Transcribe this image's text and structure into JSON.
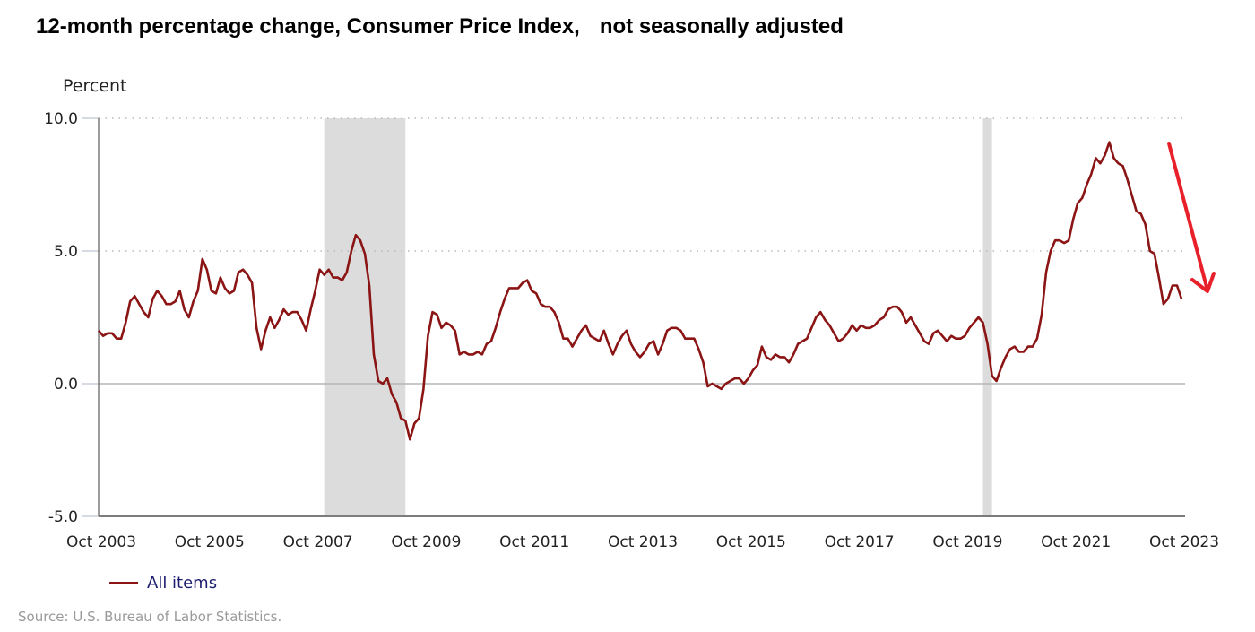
{
  "chart_data": {
    "type": "line",
    "title": "12-month percentage change, Consumer Price Index,",
    "subtitle": "not seasonally adjusted",
    "ylabel": "Percent",
    "xlabel": "",
    "ylim": [
      -5.0,
      10.0
    ],
    "yticks": [
      "10.0",
      "5.0",
      "0.0",
      "-5.0"
    ],
    "ytick_values": [
      10,
      5,
      0,
      -5
    ],
    "xticks": [
      "Oct 2003",
      "Oct 2005",
      "Oct 2007",
      "Oct 2009",
      "Oct 2011",
      "Oct 2013",
      "Oct 2015",
      "Oct 2017",
      "Oct 2019",
      "Oct 2021",
      "Oct 2023"
    ],
    "x_start": "Oct 2003",
    "x_end": "Oct 2023",
    "grid": "horizontal dotted at 5.0 and 10.0; solid zero line",
    "recessions": [
      {
        "start": "Dec 2007",
        "end": "Jun 2009"
      },
      {
        "start": "Feb 2020",
        "end": "Apr 2020"
      }
    ],
    "legend": {
      "position": "bottom-left",
      "entries": [
        {
          "name": "All items",
          "color": "#8b1414"
        }
      ]
    },
    "series": [
      {
        "name": "All items",
        "color": "#8b1414",
        "start": "Oct 2003",
        "frequency": "monthly",
        "values": [
          2.0,
          1.8,
          1.9,
          1.9,
          1.7,
          1.7,
          2.3,
          3.1,
          3.3,
          3.0,
          2.7,
          2.5,
          3.2,
          3.5,
          3.3,
          3.0,
          3.0,
          3.1,
          3.5,
          2.8,
          2.5,
          3.1,
          3.5,
          4.7,
          4.3,
          3.5,
          3.4,
          4.0,
          3.6,
          3.4,
          3.5,
          4.2,
          4.3,
          4.1,
          3.8,
          2.1,
          1.3,
          2.0,
          2.5,
          2.1,
          2.4,
          2.8,
          2.6,
          2.7,
          2.7,
          2.4,
          2.0,
          2.8,
          3.5,
          4.3,
          4.1,
          4.3,
          4.0,
          4.0,
          3.9,
          4.2,
          5.0,
          5.6,
          5.4,
          4.9,
          3.7,
          1.1,
          0.1,
          0.0,
          0.2,
          -0.4,
          -0.7,
          -1.3,
          -1.4,
          -2.1,
          -1.5,
          -1.3,
          -0.2,
          1.8,
          2.7,
          2.6,
          2.1,
          2.3,
          2.2,
          2.0,
          1.1,
          1.2,
          1.1,
          1.1,
          1.2,
          1.1,
          1.5,
          1.6,
          2.1,
          2.7,
          3.2,
          3.6,
          3.6,
          3.6,
          3.8,
          3.9,
          3.5,
          3.4,
          3.0,
          2.9,
          2.9,
          2.7,
          2.3,
          1.7,
          1.7,
          1.4,
          1.7,
          2.0,
          2.2,
          1.8,
          1.7,
          1.6,
          2.0,
          1.5,
          1.1,
          1.5,
          1.8,
          2.0,
          1.5,
          1.2,
          1.0,
          1.2,
          1.5,
          1.6,
          1.1,
          1.5,
          2.0,
          2.1,
          2.1,
          2.0,
          1.7,
          1.7,
          1.7,
          1.3,
          0.8,
          -0.1,
          0.0,
          -0.1,
          -0.2,
          0.0,
          0.1,
          0.2,
          0.2,
          0.0,
          0.2,
          0.5,
          0.7,
          1.4,
          1.0,
          0.9,
          1.1,
          1.0,
          1.0,
          0.8,
          1.1,
          1.5,
          1.6,
          1.7,
          2.1,
          2.5,
          2.7,
          2.4,
          2.2,
          1.9,
          1.6,
          1.7,
          1.9,
          2.2,
          2.0,
          2.2,
          2.1,
          2.1,
          2.2,
          2.4,
          2.5,
          2.8,
          2.9,
          2.9,
          2.7,
          2.3,
          2.5,
          2.2,
          1.9,
          1.6,
          1.5,
          1.9,
          2.0,
          1.8,
          1.6,
          1.8,
          1.7,
          1.7,
          1.8,
          2.1,
          2.3,
          2.5,
          2.3,
          1.5,
          0.3,
          0.1,
          0.6,
          1.0,
          1.3,
          1.4,
          1.2,
          1.2,
          1.4,
          1.4,
          1.7,
          2.6,
          4.2,
          5.0,
          5.4,
          5.4,
          5.3,
          5.4,
          6.2,
          6.8,
          7.0,
          7.5,
          7.9,
          8.5,
          8.3,
          8.6,
          9.1,
          8.5,
          8.3,
          8.2,
          7.7,
          7.1,
          6.5,
          6.4,
          6.0,
          5.0,
          4.9,
          4.0,
          3.0,
          3.2,
          3.7,
          3.7,
          3.2
        ]
      }
    ],
    "annotation": {
      "type": "arrow",
      "color": "#e8202a",
      "meaning": "downward trend indicator"
    }
  },
  "legend_label": "All items",
  "source": "Source: U.S. Bureau of Labor Statistics."
}
